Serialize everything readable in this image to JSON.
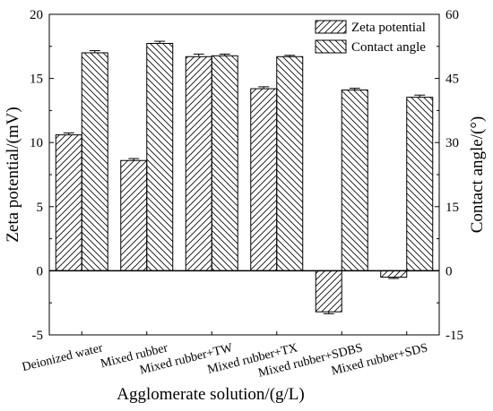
{
  "chart_data": {
    "type": "bar",
    "xlabel": "Agglomerate solution/(g/L)",
    "ylabel_left": "Zeta potential/(mV)",
    "ylabel_right": "Contact angle/(°)",
    "categories": [
      "Deionized water",
      "Mixed rubber",
      "Mixed rubber+TW",
      "Mixed rubber+TX",
      "Mixed rubber+SDBS",
      "Mixed rubber+SDS"
    ],
    "ylim_left": [
      -5,
      20
    ],
    "ylim_right": [
      -15,
      60
    ],
    "yticks_left": [
      "-5",
      "0",
      "5",
      "10",
      "15",
      "20"
    ],
    "yticks_right": [
      "-15",
      "0",
      "15",
      "30",
      "45",
      "60"
    ],
    "legend_position": "top-right",
    "series": [
      {
        "name": "Zeta potential",
        "axis": "left",
        "hatch": "forward",
        "values": [
          10.6,
          8.6,
          16.7,
          14.2,
          -3.2,
          -0.5
        ],
        "errors": [
          0.15,
          0.15,
          0.2,
          0.15,
          0.15,
          0.1
        ]
      },
      {
        "name": "Contact angle",
        "axis": "right",
        "hatch": "backward",
        "values": [
          51.0,
          53.2,
          50.3,
          50.1,
          42.3,
          40.6
        ],
        "errors": [
          0.5,
          0.5,
          0.4,
          0.3,
          0.4,
          0.5
        ]
      }
    ]
  }
}
